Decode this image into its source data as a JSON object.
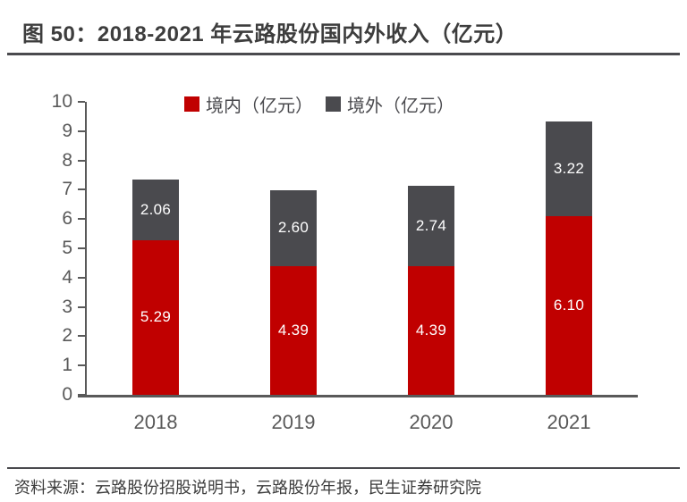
{
  "title": "图 50：2018-2021 年云路股份国内外收入（亿元）",
  "source": "资料来源：云路股份招股说明书，云路股份年报，民生证券研究院",
  "colors": {
    "domestic_red": "#C00000",
    "overseas_gray": "#4A4A4E",
    "axis_gray": "#595959",
    "bar_label_white": "#FFFFFF",
    "title_dark": "#3D3D3D"
  },
  "chart_data": {
    "type": "bar",
    "stacked": true,
    "title": "2018-2021 年云路股份国内外收入（亿元）",
    "categories": [
      "2018",
      "2019",
      "2020",
      "2021"
    ],
    "series": [
      {
        "name": "境内（亿元）",
        "color": "#C00000",
        "values": [
          5.29,
          4.39,
          4.39,
          6.1
        ],
        "value_labels": [
          "5.29",
          "4.39",
          "4.39",
          "6.10"
        ]
      },
      {
        "name": "境外（亿元）",
        "color": "#4A4A4E",
        "values": [
          2.06,
          2.6,
          2.74,
          3.22
        ],
        "value_labels": [
          "2.06",
          "2.60",
          "2.74",
          "3.22"
        ]
      }
    ],
    "ylim": [
      0,
      10
    ],
    "yticks": [
      0,
      1,
      2,
      3,
      4,
      5,
      6,
      7,
      8,
      9,
      10
    ],
    "legend_position": "top",
    "grid": false
  }
}
